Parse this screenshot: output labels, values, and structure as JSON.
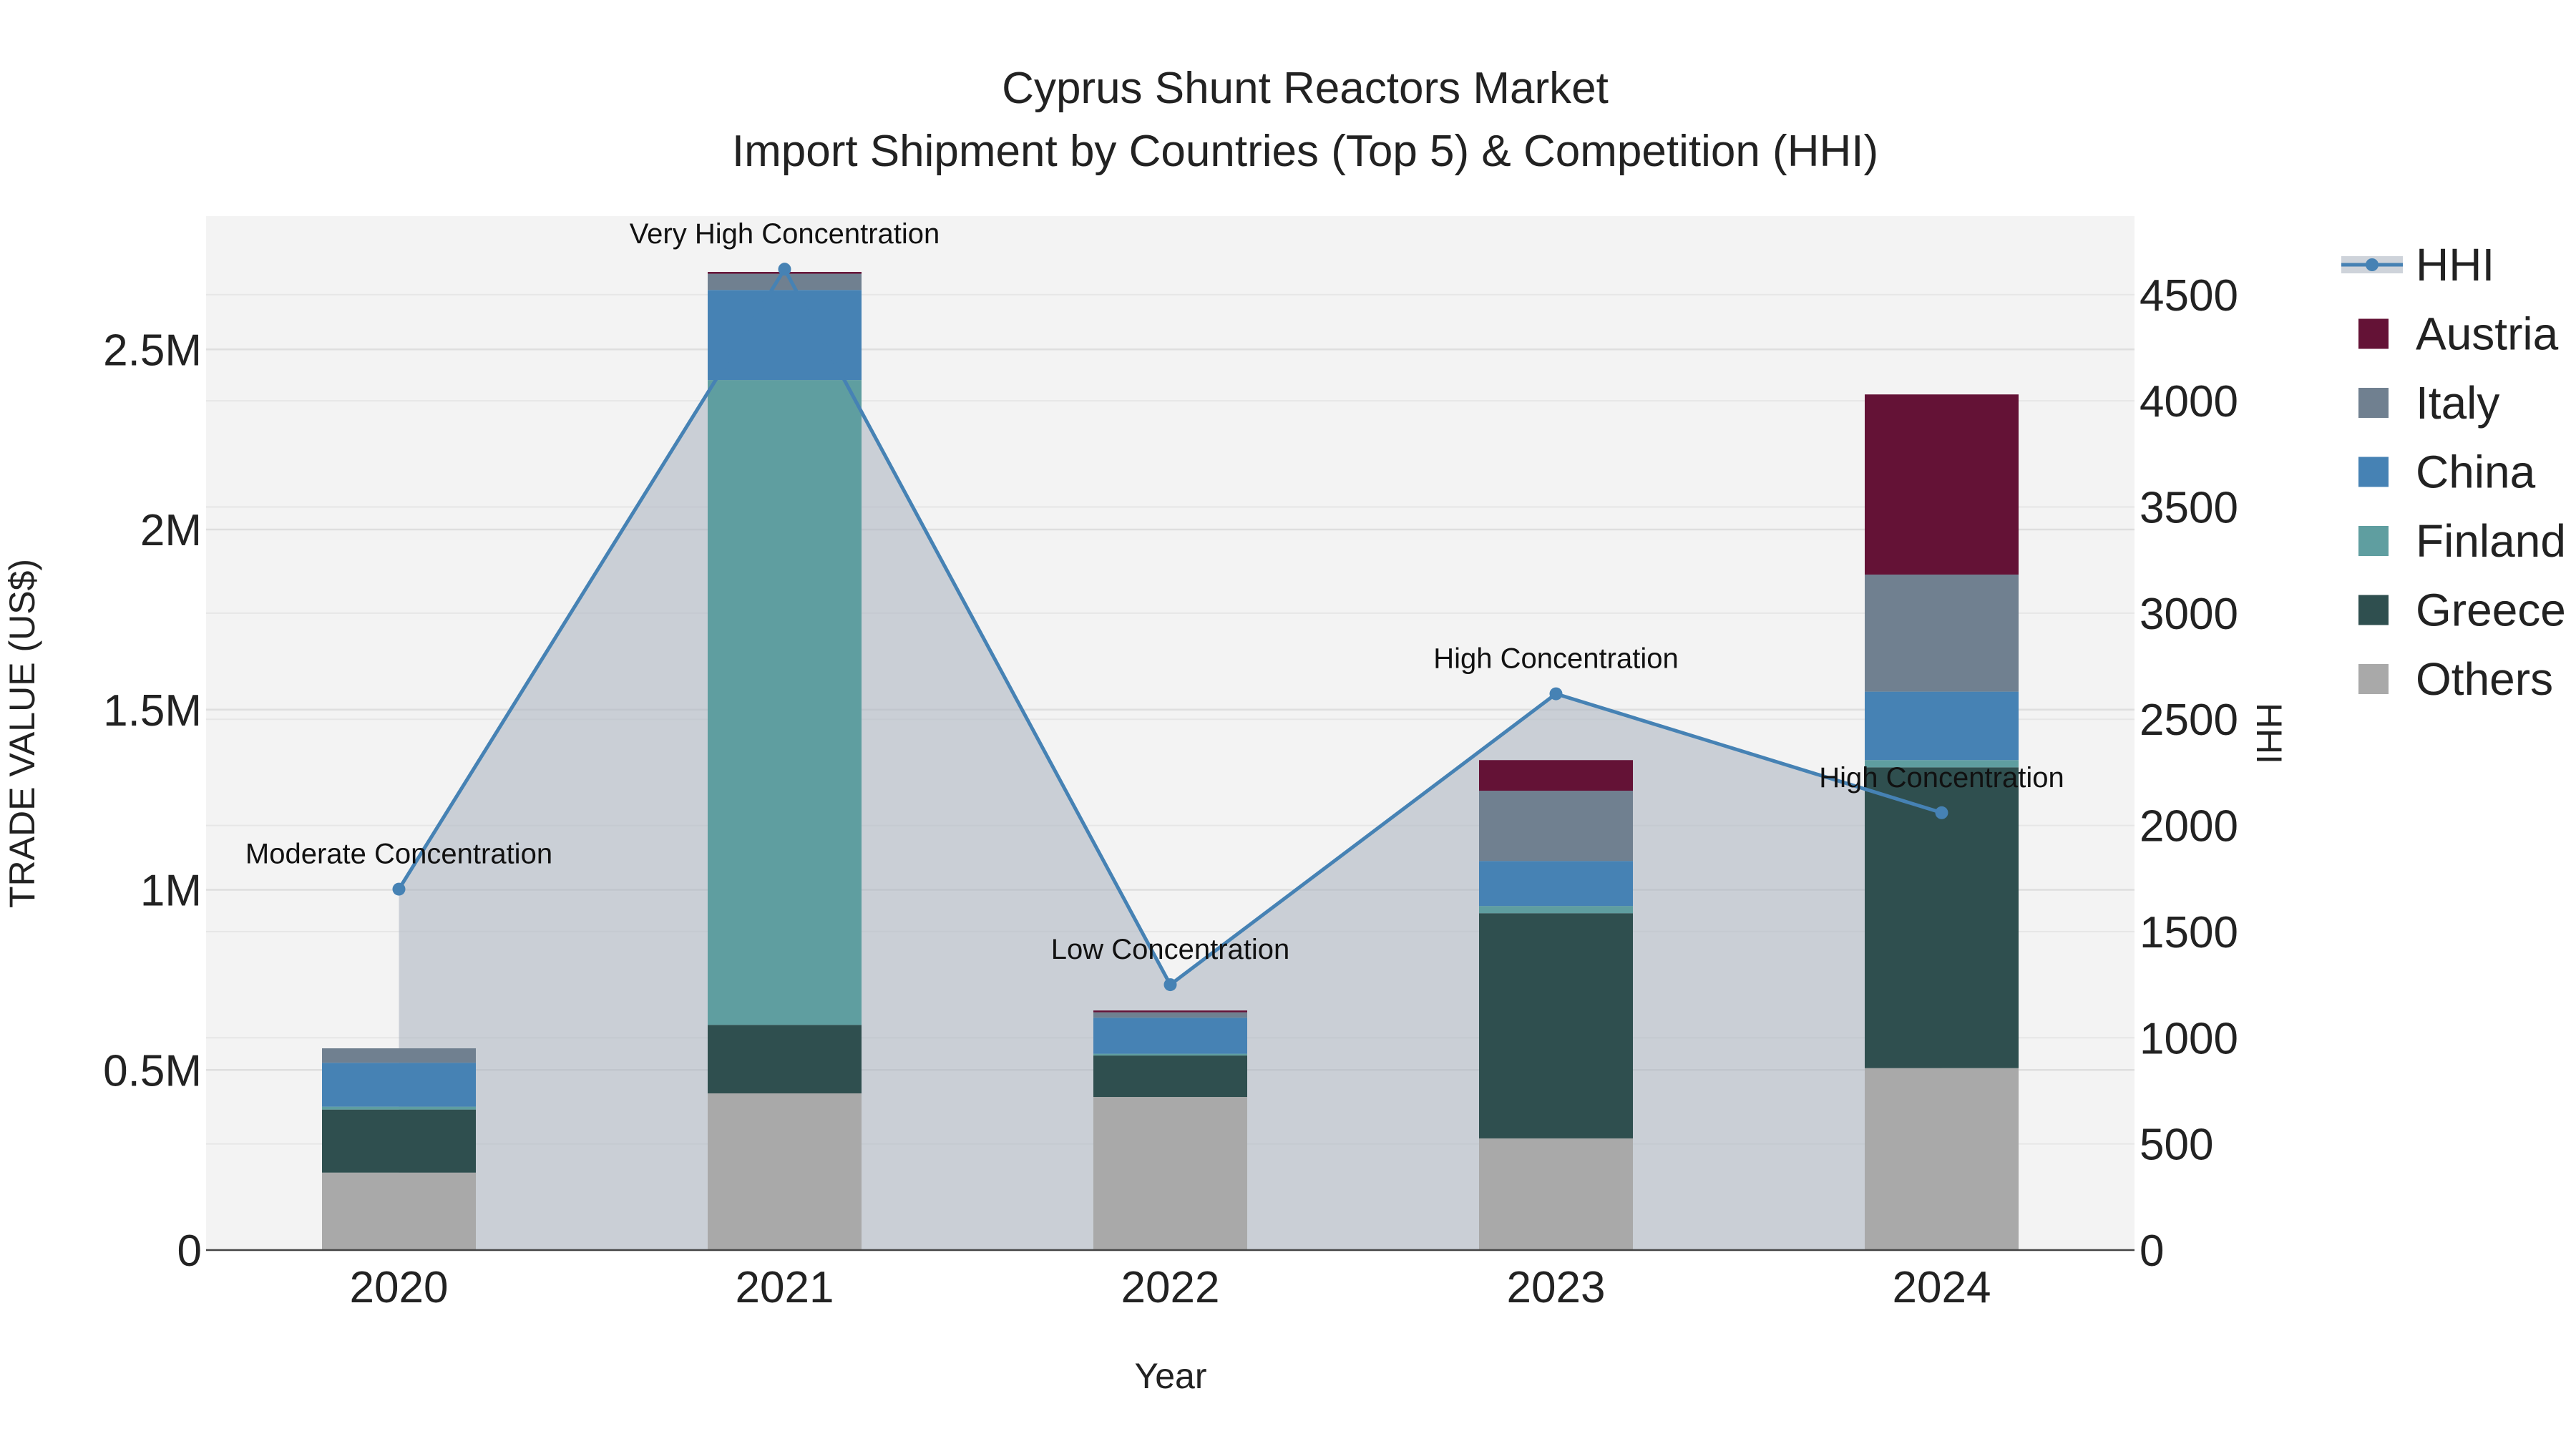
{
  "chart_data": {
    "type": "bar",
    "title": "Cyprus Shunt Reactors Market",
    "subtitle": "Import Shipment by Countries (Top 5) & Competition (HHI)",
    "xlabel": "Year",
    "ylabel": "TRADE VALUE (US$)",
    "y2label": "HHI",
    "categories": [
      "2020",
      "2021",
      "2022",
      "2023",
      "2024"
    ],
    "ylim": [
      0,
      2870000
    ],
    "y_ticks": [
      0,
      500000,
      1000000,
      1500000,
      2000000,
      2500000
    ],
    "y_tick_labels": [
      "0",
      "0.5M",
      "1M",
      "1.5M",
      "2M",
      "2.5M"
    ],
    "y2lim": [
      0,
      4870
    ],
    "y2_ticks": [
      0,
      500,
      1000,
      1500,
      2000,
      2500,
      3000,
      3500,
      4000,
      4500
    ],
    "y2_tick_labels": [
      "0",
      "500",
      "1000",
      "1500",
      "2000",
      "2500",
      "3000",
      "3500",
      "4000",
      "4500"
    ],
    "series": [
      {
        "name": "Others",
        "color": "#a9a9a9",
        "values": [
          215000,
          435000,
          425000,
          310000,
          505000
        ]
      },
      {
        "name": "Greece",
        "color": "#2f4f4f",
        "values": [
          175000,
          190000,
          115000,
          625000,
          835000
        ]
      },
      {
        "name": "Finland",
        "color": "#5f9ea0",
        "values": [
          8000,
          1790000,
          5000,
          20000,
          20000
        ]
      },
      {
        "name": "China",
        "color": "#4682b4",
        "values": [
          122000,
          250000,
          100000,
          125000,
          190000
        ]
      },
      {
        "name": "Italy",
        "color": "#708090",
        "values": [
          40000,
          45000,
          15000,
          195000,
          325000
        ]
      },
      {
        "name": "Austria",
        "color": "#641236",
        "values": [
          0,
          5000,
          5000,
          85000,
          500000
        ]
      }
    ],
    "hhi": {
      "name": "HHI",
      "color": "#4682b4",
      "values": [
        1700,
        4620,
        1250,
        2620,
        2060
      ],
      "labels": [
        "Moderate Concentration",
        "Very High Concentration",
        "Low Concentration",
        "High Concentration",
        "High Concentration"
      ]
    },
    "legend_position": "top-right"
  }
}
